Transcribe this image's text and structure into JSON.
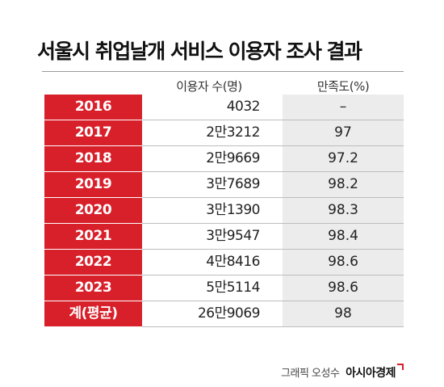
{
  "title": "서울시 취업날개 서비스 이용자 조사 결과",
  "chart_data": {
    "type": "table",
    "title": "서울시 취업날개 서비스 이용자 조사 결과",
    "columns": [
      "이용자 수(명)",
      "만족도(%)"
    ],
    "rows": [
      {
        "label": "2016",
        "users": "4032",
        "satisfaction": "–"
      },
      {
        "label": "2017",
        "users": "2만3212",
        "satisfaction": "97"
      },
      {
        "label": "2018",
        "users": "2만9669",
        "satisfaction": "97.2"
      },
      {
        "label": "2019",
        "users": "3만7689",
        "satisfaction": "98.2"
      },
      {
        "label": "2020",
        "users": "3만1390",
        "satisfaction": "98.3"
      },
      {
        "label": "2021",
        "users": "3만9547",
        "satisfaction": "98.4"
      },
      {
        "label": "2022",
        "users": "4만8416",
        "satisfaction": "98.6"
      },
      {
        "label": "2023",
        "users": "5만5114",
        "satisfaction": "98.6"
      },
      {
        "label": "계(평균)",
        "users": "26만9069",
        "satisfaction": "98"
      }
    ]
  },
  "credit": {
    "text": "그래픽 오성수",
    "brand": "아시아경제"
  },
  "colors": {
    "accent": "#d8202b",
    "shade": "#ececec"
  }
}
